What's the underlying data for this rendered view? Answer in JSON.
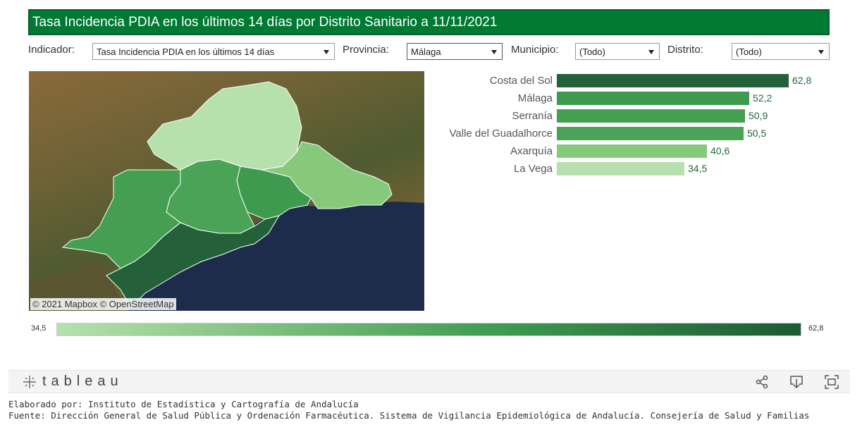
{
  "title": "Tasa Incidencia PDIA en los últimos 14 días por Distrito Sanitario a 11/11/2021",
  "filters": {
    "indicador": {
      "label": "Indicador:",
      "value": "Tasa Incidencia PDIA en los últimos 14 días"
    },
    "provincia": {
      "label": "Provincia:",
      "value": "Málaga"
    },
    "municipio": {
      "label": "Municipio:",
      "value": "(Todo)"
    },
    "distrito": {
      "label": "Distrito:",
      "value": "(Todo)"
    }
  },
  "map": {
    "credit": "© 2021 Mapbox © OpenStreetMap"
  },
  "chart_data": {
    "type": "bar",
    "orientation": "horizontal",
    "categories": [
      "Costa del Sol",
      "Málaga",
      "Serranía",
      "Valle del Guadalhorce",
      "Axarquía",
      "La Vega"
    ],
    "values": [
      62.8,
      52.2,
      50.9,
      50.5,
      40.6,
      34.5
    ],
    "value_labels": [
      "62,8",
      "52,2",
      "50,9",
      "50,5",
      "40,6",
      "34,5"
    ],
    "colors": [
      "#24613a",
      "#3e9a4f",
      "#459f52",
      "#4aa356",
      "#86c97b",
      "#b7e1ac"
    ],
    "xlim": [
      0,
      62.8
    ],
    "grid": false
  },
  "legend": {
    "min": "34,5",
    "max": "62,8",
    "min_color": "#b7e1ac",
    "max_color": "#1e5a34"
  },
  "toolbar": {
    "logo": "tableau",
    "icons": [
      "share-icon",
      "download-icon",
      "fullscreen-icon"
    ]
  },
  "footer": {
    "line1": "Elaborado por: Instituto de Estadística y Cartografía de Andalucía",
    "line2": "Fuente: Dirección General de Salud Pública y Ordenación Farmacéutica. Sistema de Vigilancia Epidemiológica de Andalucía. Consejería de Salud y Familias"
  }
}
